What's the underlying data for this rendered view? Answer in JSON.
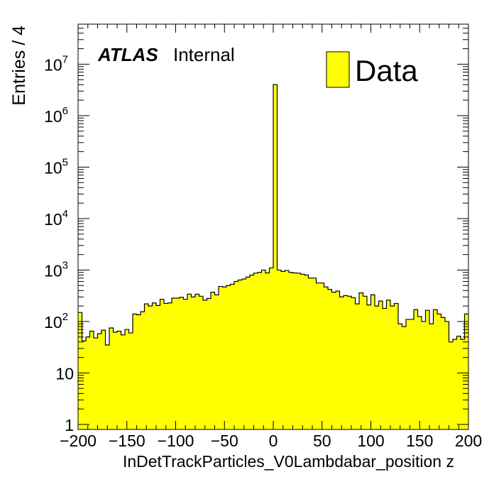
{
  "chart_data": {
    "type": "bar",
    "style": "histogram",
    "xlabel": "InDetTrackParticles_V0Lambdabar_position z",
    "ylabel": "Entries / 4",
    "xlim": [
      -200,
      200
    ],
    "ylim": [
      0.8,
      60000000
    ],
    "yscale": "log",
    "bin_width": 4,
    "x_ticks": [
      -200,
      -150,
      -100,
      -50,
      0,
      50,
      100,
      150,
      200
    ],
    "x_tick_labels": [
      "−200",
      "−150",
      "−100",
      "−50",
      "0",
      "50",
      "100",
      "150",
      "200"
    ],
    "y_tick_labels": [
      {
        "value": 1,
        "base": "1",
        "exp": ""
      },
      {
        "value": 10,
        "base": "10",
        "exp": ""
      },
      {
        "value": 100,
        "base": "10",
        "exp": "2"
      },
      {
        "value": 1000,
        "base": "10",
        "exp": "3"
      },
      {
        "value": 10000,
        "base": "10",
        "exp": "4"
      },
      {
        "value": 100000,
        "base": "10",
        "exp": "5"
      },
      {
        "value": 1000000,
        "base": "10",
        "exp": "6"
      },
      {
        "value": 10000000,
        "base": "10",
        "exp": "7"
      }
    ],
    "legend": {
      "label": "Data",
      "position": "top-right",
      "color": "#ffff00"
    },
    "atlas_label": {
      "bold": "ATLAS",
      "text": "Internal",
      "position": "top-left"
    },
    "fill_color": "#ffff00",
    "line_color": "#000000",
    "series": [
      {
        "name": "Data",
        "bin_low_edges": [
          -200,
          -196,
          -192,
          -188,
          -184,
          -180,
          -176,
          -172,
          -168,
          -164,
          -160,
          -156,
          -152,
          -148,
          -144,
          -140,
          -136,
          -132,
          -128,
          -124,
          -120,
          -116,
          -112,
          -108,
          -104,
          -100,
          -96,
          -92,
          -88,
          -84,
          -80,
          -76,
          -72,
          -68,
          -64,
          -60,
          -56,
          -52,
          -48,
          -44,
          -40,
          -36,
          -32,
          -28,
          -24,
          -20,
          -16,
          -12,
          -8,
          -4,
          0,
          4,
          8,
          12,
          16,
          20,
          24,
          28,
          32,
          36,
          40,
          44,
          48,
          52,
          56,
          60,
          64,
          68,
          72,
          76,
          80,
          84,
          88,
          92,
          96,
          100,
          104,
          108,
          112,
          116,
          120,
          124,
          128,
          132,
          136,
          140,
          144,
          148,
          152,
          156,
          160,
          164,
          168,
          172,
          176,
          180,
          184,
          188,
          192,
          196
        ],
        "values": [
          150,
          42,
          50,
          65,
          48,
          58,
          68,
          35,
          75,
          62,
          65,
          55,
          70,
          60,
          140,
          135,
          155,
          220,
          200,
          230,
          205,
          270,
          225,
          230,
          285,
          285,
          295,
          270,
          340,
          300,
          340,
          310,
          260,
          280,
          370,
          330,
          480,
          470,
          500,
          530,
          600,
          640,
          670,
          730,
          800,
          870,
          900,
          1000,
          880,
          1100,
          4000000,
          1000,
          940,
          980,
          900,
          880,
          870,
          830,
          800,
          700,
          700,
          560,
          560,
          470,
          420,
          370,
          390,
          300,
          320,
          310,
          290,
          220,
          360,
          310,
          210,
          330,
          200,
          250,
          180,
          260,
          200,
          225,
          90,
          80,
          110,
          110,
          170,
          125,
          100,
          165,
          90,
          170,
          140,
          120,
          100,
          40,
          45,
          52,
          45,
          140
        ]
      }
    ]
  }
}
